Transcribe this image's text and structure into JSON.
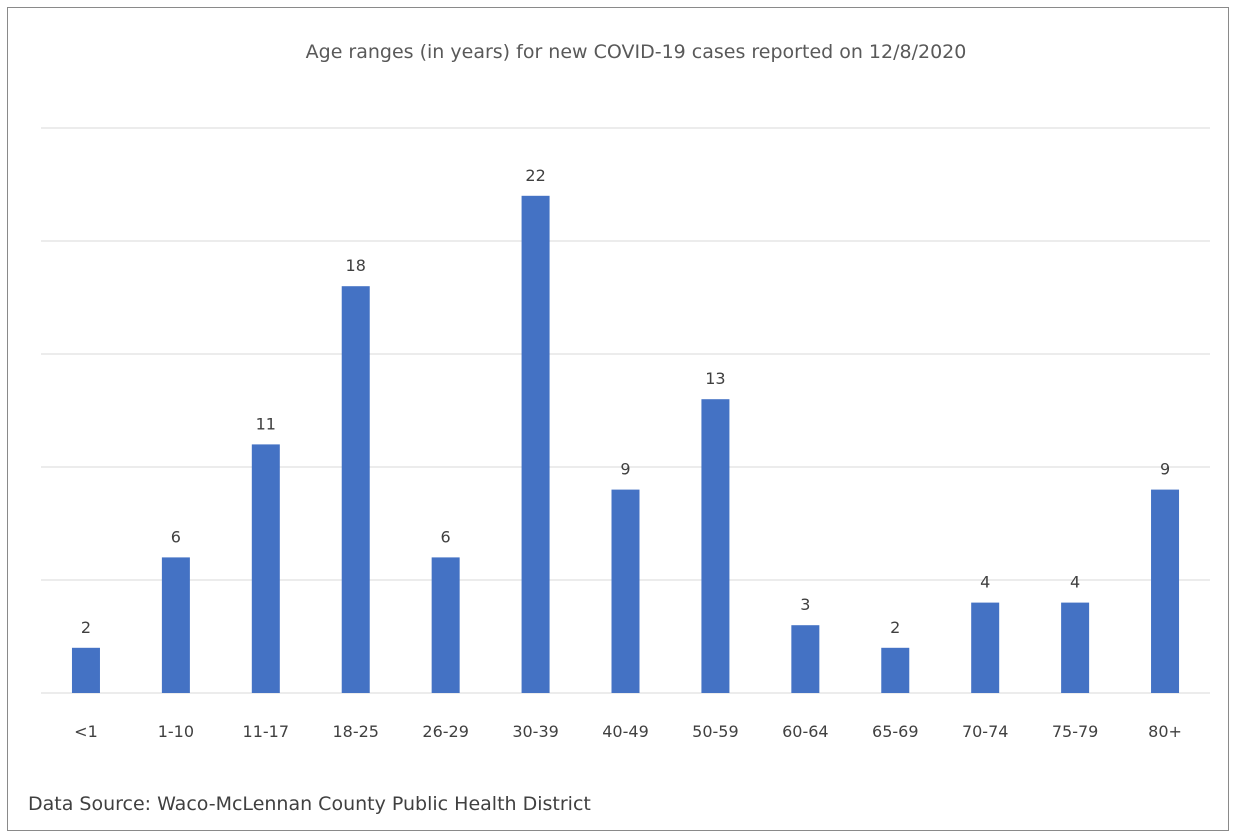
{
  "chart_data": {
    "type": "bar",
    "title": "Age ranges (in years) for new COVID-19 cases reported on 12/8/2020",
    "xlabel": "",
    "ylabel": "",
    "categories": [
      "<1",
      "1-10",
      "11-17",
      "18-25",
      "26-29",
      "30-39",
      "40-49",
      "50-59",
      "60-64",
      "65-69",
      "70-74",
      "75-79",
      "80+"
    ],
    "values": [
      2,
      6,
      11,
      18,
      6,
      22,
      9,
      13,
      3,
      2,
      4,
      4,
      9
    ],
    "ylim": [
      0,
      25
    ],
    "grid": true,
    "legend": "none",
    "bar_color": "#4472C4",
    "gridline_color": "#d9d9d9"
  },
  "footer": {
    "source": "Data Source: Waco-McLennan County Public Health District"
  }
}
